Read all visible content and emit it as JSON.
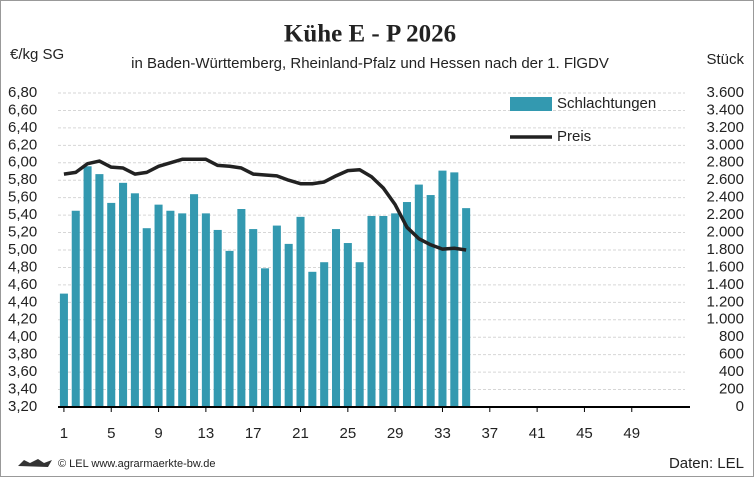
{
  "chart_data": {
    "type": "bar-line",
    "title": "Kühe E - P 2026",
    "subtitle": "in Baden-Württemberg, Rheinland-Pfalz und Hessen nach der 1. FlGDV",
    "y_label": "€/kg SG",
    "y2_label": "Stück",
    "source_left": "© LEL www.agrarmaerkte-bw.de",
    "source_right": "Daten: LEL",
    "x": [
      1,
      2,
      3,
      4,
      5,
      6,
      7,
      8,
      9,
      10,
      11,
      12,
      13,
      14,
      15,
      16,
      17,
      18,
      19,
      20,
      21,
      22,
      23,
      24,
      25,
      26,
      27,
      28,
      29,
      30,
      31,
      32,
      33,
      34,
      35
    ],
    "xlim": [
      0.5,
      53.5
    ],
    "xticks": [
      1,
      5,
      9,
      13,
      17,
      21,
      25,
      29,
      33,
      37,
      41,
      45,
      49
    ],
    "ylim": [
      3.2,
      6.8
    ],
    "yticks": [
      {
        "value": 3.2,
        "label": "3,20"
      },
      {
        "value": 3.4,
        "label": "3,40"
      },
      {
        "value": 3.6,
        "label": "3,60"
      },
      {
        "value": 3.8,
        "label": "3,80"
      },
      {
        "value": 4.0,
        "label": "4,00"
      },
      {
        "value": 4.2,
        "label": "4,20"
      },
      {
        "value": 4.4,
        "label": "4,40"
      },
      {
        "value": 4.6,
        "label": "4,60"
      },
      {
        "value": 4.8,
        "label": "4,80"
      },
      {
        "value": 5.0,
        "label": "5,00"
      },
      {
        "value": 5.2,
        "label": "5,20"
      },
      {
        "value": 5.4,
        "label": "5,40"
      },
      {
        "value": 5.6,
        "label": "5,60"
      },
      {
        "value": 5.8,
        "label": "5,80"
      },
      {
        "value": 6.0,
        "label": "6,00"
      },
      {
        "value": 6.2,
        "label": "6,20"
      },
      {
        "value": 6.4,
        "label": "6,40"
      },
      {
        "value": 6.6,
        "label": "6,60"
      },
      {
        "value": 6.8,
        "label": "6,80"
      }
    ],
    "y2lim": [
      0,
      3600
    ],
    "y2ticks": [
      0,
      200,
      400,
      600,
      800,
      {
        "value": 1000,
        "label": "1.000"
      },
      {
        "value": 1200,
        "label": "1.200"
      },
      {
        "value": 1400,
        "label": "1.400"
      },
      {
        "value": 1600,
        "label": "1.600"
      },
      {
        "value": 1800,
        "label": "1.800"
      },
      {
        "value": 2000,
        "label": "2.000"
      },
      {
        "value": 2200,
        "label": "2.200"
      },
      {
        "value": 2400,
        "label": "2.400"
      },
      {
        "value": 2600,
        "label": "2.600"
      },
      {
        "value": 2800,
        "label": "2.800"
      },
      {
        "value": 3000,
        "label": "3.000"
      },
      {
        "value": 3200,
        "label": "3.200"
      },
      {
        "value": 3400,
        "label": "3.400"
      },
      {
        "value": 3600,
        "label": "3.600"
      }
    ],
    "grid": true,
    "legend": "top-right",
    "series": [
      {
        "name": "Schlachtungen",
        "type": "bar",
        "axis": "y2",
        "color": "#3399b0",
        "values": [
          1300,
          2250,
          2760,
          2670,
          2340,
          2570,
          2450,
          2050,
          2320,
          2250,
          2220,
          2440,
          2220,
          2030,
          1790,
          2270,
          2040,
          1590,
          2080,
          1870,
          2180,
          1550,
          1660,
          2040,
          1880,
          1660,
          2190,
          2190,
          2220,
          2350,
          2550,
          2430,
          2710,
          2690,
          2280
        ]
      },
      {
        "name": "Preis",
        "type": "line",
        "color": "#222222",
        "values": [
          5.87,
          5.89,
          5.99,
          6.02,
          5.95,
          5.94,
          5.87,
          5.89,
          5.96,
          6.0,
          6.04,
          6.04,
          6.04,
          5.97,
          5.96,
          5.94,
          5.87,
          5.86,
          5.85,
          5.8,
          5.76,
          5.76,
          5.78,
          5.85,
          5.91,
          5.92,
          5.84,
          5.71,
          5.52,
          5.26,
          5.13,
          5.06,
          5.01,
          5.02,
          5.0
        ]
      }
    ]
  }
}
